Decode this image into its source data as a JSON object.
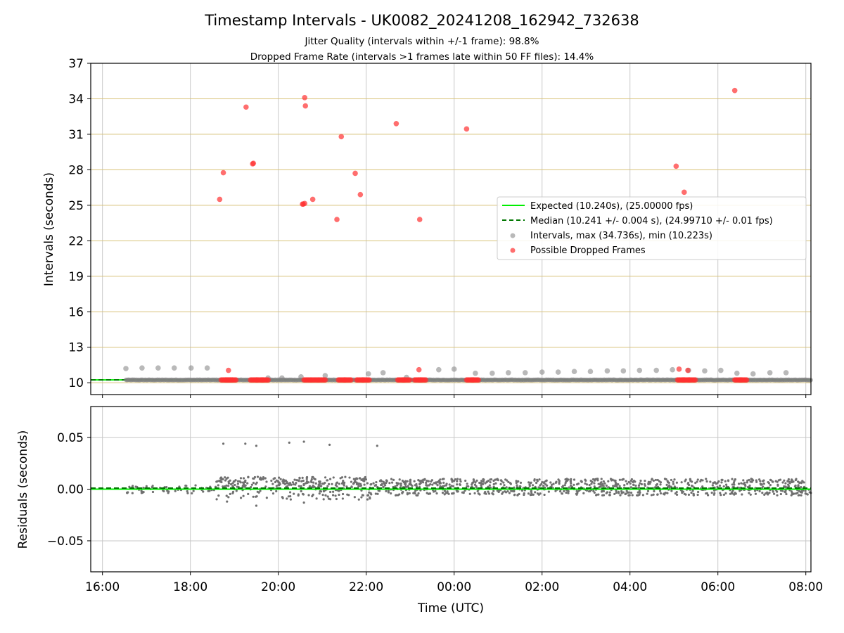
{
  "chart_data": [
    {
      "type": "scatter",
      "title": "Timestamp Intervals - UK0082_20241208_162942_732638",
      "subtitle_lines": [
        "Jitter Quality (intervals within +/-1 frame): 98.8%",
        "Dropped Frame Rate (intervals >1 frames late within 50 FF files): 14.4%"
      ],
      "xlabel": "",
      "ylabel": "Intervals (seconds)",
      "x_axis_type": "time",
      "xlim": [
        "15:44",
        "08:07"
      ],
      "ylim": [
        9,
        37
      ],
      "yticks": [
        10,
        13,
        16,
        19,
        22,
        25,
        28,
        31,
        34,
        37
      ],
      "ytick_labels": [
        "10",
        "13",
        "16",
        "19",
        "22",
        "25",
        "28",
        "31",
        "34",
        "37"
      ],
      "xticks": [
        "16:00",
        "18:00",
        "20:00",
        "22:00",
        "00:00",
        "02:00",
        "04:00",
        "06:00",
        "08:00"
      ],
      "grid": "on",
      "horizontal_grid_color": "#d8c27a",
      "legend": {
        "placement": "center-right",
        "entries": [
          "Expected (10.240s), (25.00000 fps)",
          "Median (10.241 +/- 0.004 s), (24.99710 +/- 0.01 fps)",
          "Intervals, max (34.736s), min (10.223s)",
          "Possible Dropped Frames"
        ]
      },
      "expected_line": {
        "value": 10.24,
        "color": "#00ee00"
      },
      "median_line": {
        "value": 10.241,
        "color": "#007700"
      },
      "colors": {
        "intervals": "#808080",
        "dropped": "#ff3030"
      },
      "series": [
        {
          "name": "Intervals, max (34.736s), min (10.223s)",
          "points": [
            [
              "16:32",
              11.2
            ],
            [
              "16:54",
              11.25
            ],
            [
              "17:16",
              11.25
            ],
            [
              "17:38",
              11.25
            ],
            [
              "18:01",
              11.25
            ],
            [
              "18:23",
              11.25
            ],
            [
              "19:46",
              10.4
            ],
            [
              "20:05",
              10.4
            ],
            [
              "20:31",
              10.5
            ],
            [
              "21:04",
              10.6
            ],
            [
              "22:03",
              10.75
            ],
            [
              "22:23",
              10.85
            ],
            [
              "22:55",
              10.45
            ],
            [
              "23:39",
              11.1
            ],
            [
              "24:00",
              11.15
            ],
            [
              "24:29",
              10.8
            ],
            [
              "24:52",
              10.8
            ],
            [
              "25:14",
              10.85
            ],
            [
              "25:37",
              10.85
            ],
            [
              "26:00",
              10.9
            ],
            [
              "26:22",
              10.9
            ],
            [
              "26:44",
              10.95
            ],
            [
              "27:06",
              10.95
            ],
            [
              "27:29",
              11.0
            ],
            [
              "27:51",
              11.0
            ],
            [
              "28:13",
              11.05
            ],
            [
              "28:36",
              11.05
            ],
            [
              "28:58",
              11.1
            ],
            [
              "29:20",
              11.05
            ],
            [
              "29:42",
              11.0
            ],
            [
              "30:04",
              11.05
            ],
            [
              "30:26",
              10.8
            ],
            [
              "30:48",
              10.75
            ],
            [
              "31:11",
              10.85
            ],
            [
              "31:33",
              10.85
            ]
          ]
        },
        {
          "name": "Possible Dropped Frames",
          "points": [
            [
              "18:40",
              25.5
            ],
            [
              "18:45",
              27.75
            ],
            [
              "18:52",
              11.05
            ],
            [
              "19:16",
              33.3
            ],
            [
              "19:25",
              28.5
            ],
            [
              "19:26",
              28.55
            ],
            [
              "20:33",
              25.1
            ],
            [
              "20:34",
              25.1
            ],
            [
              "20:36",
              25.15
            ],
            [
              "20:36",
              34.1
            ],
            [
              "20:37",
              33.4
            ],
            [
              "20:47",
              25.5
            ],
            [
              "21:20",
              23.8
            ],
            [
              "21:26",
              30.8
            ],
            [
              "21:45",
              27.7
            ],
            [
              "21:52",
              25.9
            ],
            [
              "22:41",
              31.9
            ],
            [
              "23:12",
              11.1
            ],
            [
              "23:13",
              23.8
            ],
            [
              "24:17",
              31.45
            ],
            [
              "29:03",
              28.3
            ],
            [
              "29:07",
              11.15
            ],
            [
              "29:14",
              26.1
            ],
            [
              "29:19",
              11.05
            ],
            [
              "30:23",
              34.7
            ],
            [
              "18:42",
              10.24
            ],
            [
              "18:48",
              10.24
            ],
            [
              "18:53",
              10.24
            ],
            [
              "19:22",
              10.24
            ],
            [
              "19:30",
              10.24
            ],
            [
              "19:37",
              10.24
            ],
            [
              "20:35",
              10.24
            ],
            [
              "20:45",
              10.24
            ],
            [
              "20:55",
              10.24
            ],
            [
              "21:22",
              10.24
            ],
            [
              "21:30",
              10.24
            ],
            [
              "21:47",
              10.24
            ],
            [
              "21:55",
              10.24
            ],
            [
              "22:43",
              10.24
            ],
            [
              "22:50",
              10.24
            ],
            [
              "23:06",
              10.24
            ],
            [
              "23:12",
              10.24
            ],
            [
              "24:17",
              10.24
            ],
            [
              "24:24",
              10.24
            ],
            [
              "29:05",
              10.24
            ],
            [
              "29:12",
              10.24
            ],
            [
              "29:20",
              10.24
            ],
            [
              "30:23",
              10.24
            ],
            [
              "30:30",
              10.24
            ]
          ]
        }
      ]
    },
    {
      "type": "scatter",
      "title": "",
      "xlabel": "Time (UTC)",
      "ylabel": "Residuals (seconds)",
      "x_axis_type": "time",
      "xlim": [
        "15:44",
        "08:07"
      ],
      "ylim": [
        -0.08,
        0.08
      ],
      "yticks": [
        -0.05,
        0.0,
        0.05
      ],
      "ytick_labels": [
        "−0.05",
        "0.00",
        "0.05"
      ],
      "xticks": [
        "16:00",
        "18:00",
        "20:00",
        "22:00",
        "00:00",
        "02:00",
        "04:00",
        "06:00",
        "08:00"
      ],
      "grid": "on",
      "expected_line": {
        "value": 0.0,
        "color": "#00ee00"
      },
      "median_line": {
        "value": 0.001,
        "color": "#007700"
      },
      "residual_color": "#707070",
      "residual_segments": [
        {
          "start": "16:32",
          "end": "18:35",
          "center": 0.0,
          "spread": 0.004,
          "count": 60
        },
        {
          "start": "18:35",
          "end": "22:05",
          "center": 0.007,
          "spread": 0.005,
          "count": 220
        },
        {
          "start": "18:35",
          "end": "22:05",
          "center": -0.004,
          "spread": 0.006,
          "count": 90
        },
        {
          "start": "22:05",
          "end": "32:07",
          "center": 0.002,
          "spread": 0.008,
          "count": 900
        }
      ],
      "residual_outliers": [
        [
          "18:45",
          0.044
        ],
        [
          "19:15",
          0.044
        ],
        [
          "19:30",
          0.042
        ],
        [
          "20:15",
          0.045
        ],
        [
          "20:35",
          0.046
        ],
        [
          "21:10",
          0.043
        ],
        [
          "22:15",
          0.042
        ],
        [
          "19:30",
          -0.016
        ],
        [
          "20:35",
          -0.013
        ],
        [
          "18:50",
          -0.012
        ],
        [
          "22:05",
          -0.009
        ],
        [
          "21:50",
          -0.01
        ]
      ]
    }
  ]
}
